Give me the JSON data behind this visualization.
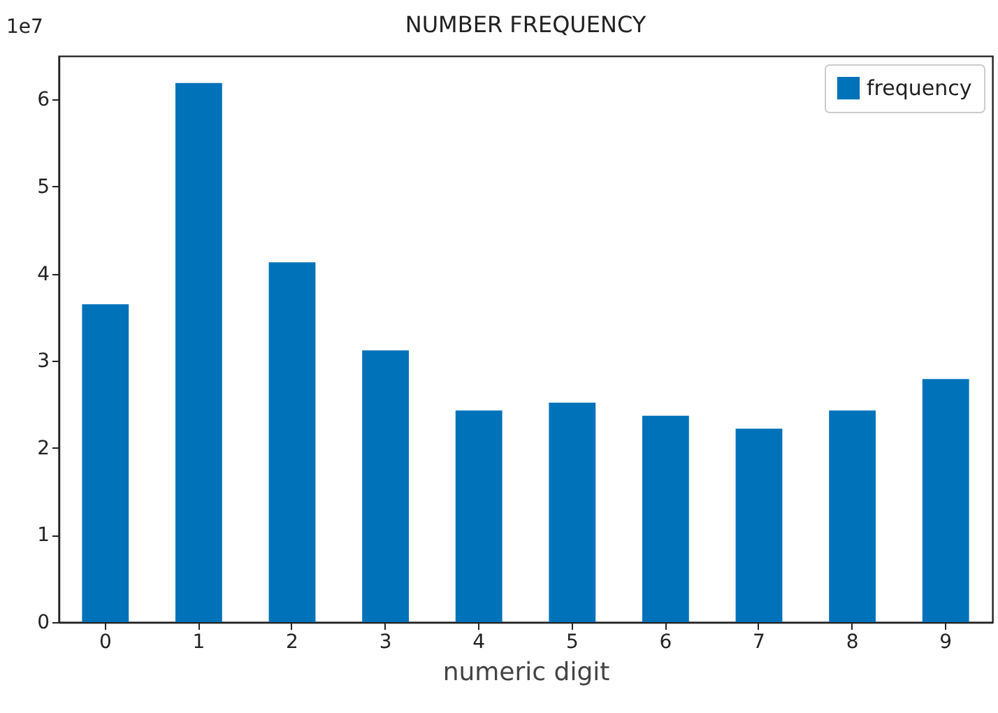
{
  "chart_data": {
    "type": "bar",
    "title": "NUMBER FREQUENCY",
    "xlabel": "numeric digit",
    "annotations": [
      "1e7"
    ],
    "categories": [
      "0",
      "1",
      "2",
      "3",
      "4",
      "5",
      "6",
      "7",
      "8",
      "9"
    ],
    "series": [
      {
        "name": "frequency",
        "color": "#0072b9",
        "values": [
          3.65,
          6.19,
          4.13,
          3.12,
          2.43,
          2.52,
          2.37,
          2.22,
          2.43,
          2.79
        ]
      }
    ],
    "ylim": [
      0,
      6.5
    ],
    "yticks": [
      0,
      1,
      2,
      3,
      4,
      5,
      6
    ],
    "grid": false,
    "legend": "top right"
  }
}
